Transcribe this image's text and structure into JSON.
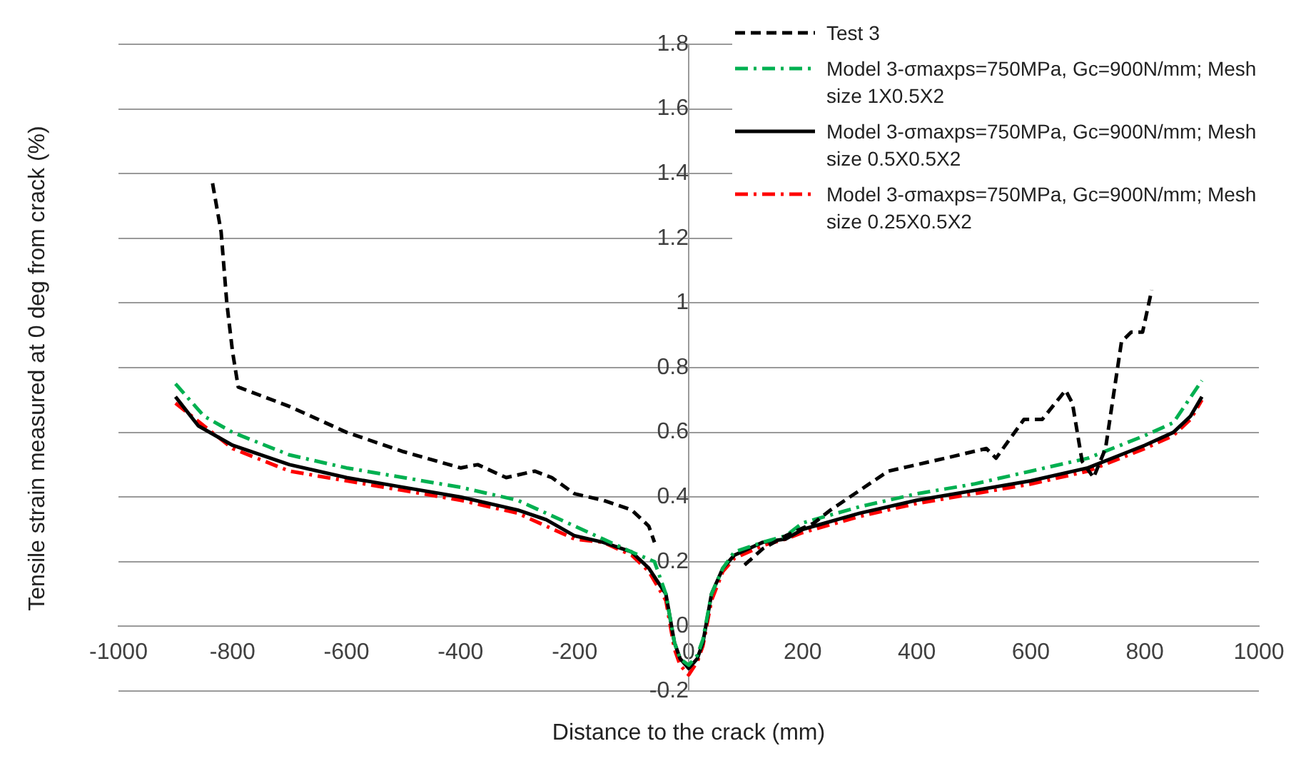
{
  "chart_data": {
    "type": "line",
    "xlabel": "Distance to the crack (mm)",
    "ylabel": "Tensile strain measured at 0 deg from crack (%)",
    "xlim": [
      -1000,
      1000
    ],
    "xticks": [
      -1000,
      -800,
      -600,
      -400,
      -200,
      0,
      200,
      400,
      600,
      800,
      1000
    ],
    "ylim": [
      -0.2,
      1.8
    ],
    "yticks": [
      -0.2,
      0,
      0.2,
      0.4,
      0.6,
      0.8,
      1,
      1.2,
      1.4,
      1.6,
      1.8
    ],
    "grid": "y",
    "legend": "top right",
    "marker": "none",
    "series": [
      {
        "name": "Test 3",
        "color": "#000000",
        "line_style": "dashed",
        "x": [
          -835,
          -820,
          -810,
          -800,
          -790,
          -700,
          -600,
          -500,
          -400,
          -370,
          -320,
          -270,
          -240,
          -200,
          -150,
          -100,
          -70,
          -60,
          0,
          98,
          130,
          170,
          220,
          249,
          350,
          450,
          522,
          539,
          588,
          620,
          661,
          673,
          690,
          710,
          731,
          759,
          776,
          796,
          812
        ],
        "values": [
          1.37,
          1.22,
          1.0,
          0.85,
          0.74,
          0.68,
          0.6,
          0.54,
          0.49,
          0.5,
          0.46,
          0.48,
          0.46,
          0.41,
          0.39,
          0.36,
          0.31,
          0.26,
          null,
          0.19,
          0.24,
          0.28,
          0.32,
          0.36,
          0.48,
          0.52,
          0.55,
          0.52,
          0.64,
          0.64,
          0.73,
          0.69,
          0.51,
          0.46,
          0.55,
          0.88,
          0.91,
          0.91,
          1.04
        ]
      },
      {
        "name": "Model 3-σmaxps=750MPa, Gc=900N/mm; Mesh size 1X0.5X2",
        "color": "#00b050",
        "line_style": "dashdot",
        "x": [
          -900,
          -850,
          -800,
          -700,
          -600,
          -500,
          -400,
          -300,
          -200,
          -150,
          -100,
          -60,
          -40,
          -25,
          -15,
          0,
          15,
          25,
          40,
          60,
          80,
          130,
          170,
          200,
          300,
          400,
          500,
          600,
          700,
          800,
          850,
          900
        ],
        "values": [
          0.75,
          0.65,
          0.6,
          0.53,
          0.49,
          0.46,
          0.43,
          0.39,
          0.31,
          0.27,
          0.23,
          0.2,
          0.1,
          -0.05,
          -0.1,
          -0.12,
          -0.09,
          -0.04,
          0.1,
          0.18,
          0.23,
          0.26,
          0.28,
          0.32,
          0.37,
          0.41,
          0.44,
          0.48,
          0.52,
          0.59,
          0.63,
          0.76
        ]
      },
      {
        "name": "Model 3-σmaxps=750MPa, Gc=900N/mm; Mesh size 0.5X0.5X2",
        "color": "#000000",
        "line_style": "solid",
        "x": [
          -900,
          -860,
          -800,
          -700,
          -600,
          -500,
          -400,
          -300,
          -250,
          -200,
          -150,
          -100,
          -70,
          -40,
          -25,
          -15,
          0,
          15,
          25,
          40,
          60,
          80,
          130,
          170,
          200,
          300,
          400,
          500,
          600,
          700,
          800,
          850,
          880,
          900
        ],
        "values": [
          0.71,
          0.62,
          0.56,
          0.5,
          0.46,
          0.43,
          0.4,
          0.36,
          0.33,
          0.28,
          0.26,
          0.23,
          0.18,
          0.1,
          -0.05,
          -0.1,
          -0.13,
          -0.1,
          -0.05,
          0.1,
          0.18,
          0.22,
          0.26,
          0.27,
          0.3,
          0.35,
          0.39,
          0.42,
          0.45,
          0.49,
          0.56,
          0.6,
          0.65,
          0.71
        ]
      },
      {
        "name": "Model 3-σmaxps=750MPa, Gc=900N/mm; Mesh size 0.25X0.5X2",
        "color": "#ff0000",
        "line_style": "dashdot",
        "x": [
          -900,
          -800,
          -700,
          -600,
          -500,
          -400,
          -300,
          -200,
          -150,
          -100,
          -70,
          -40,
          -25,
          -15,
          0,
          15,
          25,
          40,
          60,
          80,
          130,
          170,
          200,
          300,
          400,
          500,
          600,
          700,
          800,
          850,
          880,
          900
        ],
        "values": [
          0.69,
          0.55,
          0.48,
          0.45,
          0.42,
          0.39,
          0.35,
          0.27,
          0.26,
          0.22,
          0.17,
          0.08,
          -0.07,
          -0.12,
          -0.15,
          -0.11,
          -0.06,
          0.08,
          0.17,
          0.21,
          0.25,
          0.27,
          0.29,
          0.34,
          0.38,
          0.41,
          0.44,
          0.48,
          0.55,
          0.59,
          0.64,
          0.7
        ]
      }
    ]
  }
}
